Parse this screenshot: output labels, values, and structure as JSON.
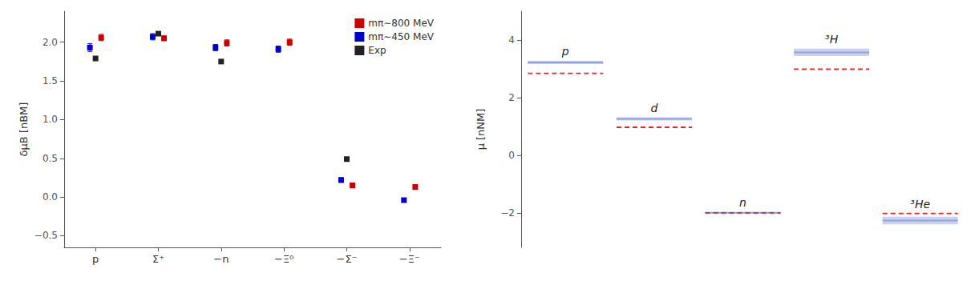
{
  "chart_data": [
    {
      "type": "scatter",
      "categories": [
        "p",
        "Σ⁺",
        "−n",
        "−Ξ⁰",
        "−Σ⁻",
        "−Ξ⁻"
      ],
      "ylabel": "δμB [nBM]",
      "ylim": [
        -0.65,
        2.4
      ],
      "yticks": [
        {
          "value": -0.5,
          "label": "−0.5"
        },
        {
          "value": 0,
          "label": "0.0"
        },
        0.5,
        {
          "value": 1,
          "label": "1.0"
        },
        1.5,
        {
          "value": 2,
          "label": "2.0"
        }
      ],
      "grid": false,
      "legend": "upper right",
      "marker": "square",
      "series": [
        {
          "name": "mπ∼800 MeV",
          "color": "#cc0000",
          "values": [
            2.06,
            2.05,
            1.99,
            2.0,
            0.15,
            0.13
          ],
          "errors": [
            0.04,
            0.03,
            0.04,
            0.04,
            0.03,
            0.02
          ]
        },
        {
          "name": "mπ∼450 MeV",
          "color": "#0000cc",
          "values": [
            1.93,
            2.07,
            1.93,
            1.91,
            0.22,
            -0.04
          ],
          "errors": [
            0.05,
            0.04,
            0.04,
            0.04,
            0.03,
            0.02
          ]
        },
        {
          "name": "Exp",
          "color": "#222222",
          "values": [
            1.79,
            2.11,
            1.75,
            null,
            0.49,
            null
          ]
        }
      ]
    },
    {
      "type": "band",
      "categories": [
        "p",
        "d",
        "n",
        "³H",
        "³He"
      ],
      "ylabel": "μ [nNM]",
      "ylim": [
        -3.2,
        5.0
      ],
      "yticks": [
        {
          "value": -2,
          "label": "−2"
        },
        0,
        2,
        4
      ],
      "grid": false,
      "tick_labels": "y",
      "series": [
        {
          "type": "band",
          "color": "#8899dd",
          "values": [
            3.22,
            1.26,
            -2.0,
            3.57,
            -2.27
          ],
          "half_widths": [
            0.055,
            0.055,
            0.03,
            0.13,
            0.13
          ]
        },
        {
          "type": "line",
          "line_style": "dashed",
          "color": "#ee2222",
          "values": [
            2.84,
            0.97,
            -2.0,
            2.99,
            -2.02
          ]
        }
      ]
    }
  ]
}
